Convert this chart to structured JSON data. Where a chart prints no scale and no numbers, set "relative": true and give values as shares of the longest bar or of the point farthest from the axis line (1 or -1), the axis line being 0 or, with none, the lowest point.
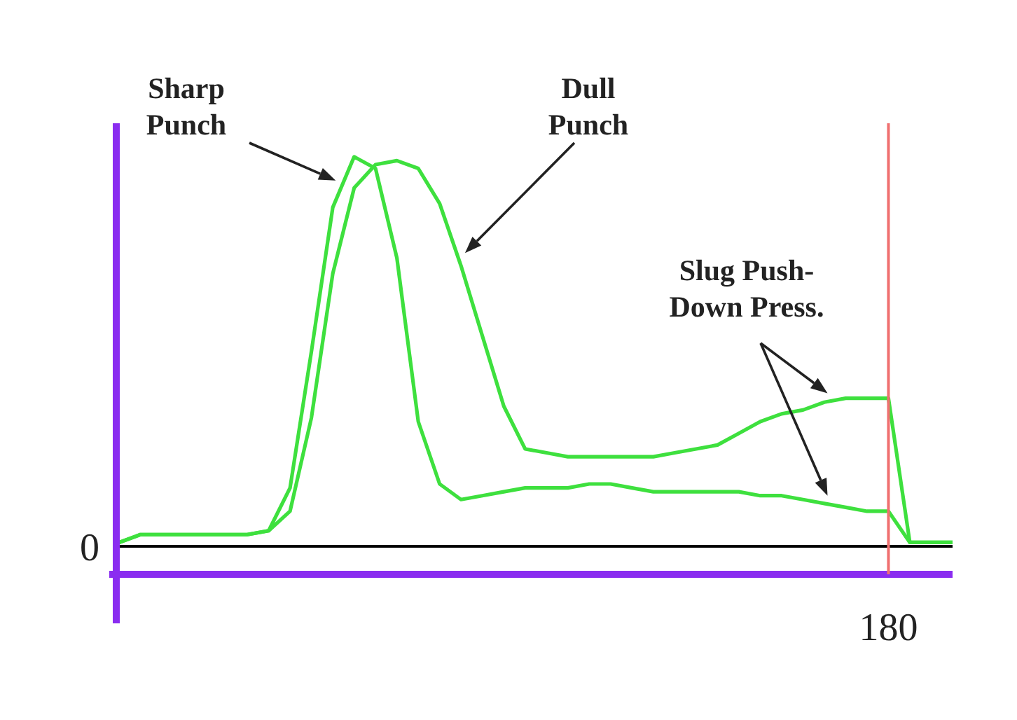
{
  "chart_data": {
    "type": "line",
    "relative": true,
    "line_style": "solid",
    "marker": "none",
    "categories": [
      null,
      null,
      null,
      null,
      null,
      null,
      null,
      null,
      null,
      null,
      null,
      null,
      null,
      null,
      null,
      null,
      null,
      null,
      null,
      null,
      null,
      null,
      null,
      null,
      null,
      null,
      null,
      null,
      null,
      null,
      null,
      null,
      null,
      null,
      null,
      null,
      null,
      null,
      null,
      null
    ],
    "series": [
      {
        "name": "Sharp Punch",
        "color": "#3ee03e",
        "values": [
          0.01,
          0.03,
          0.03,
          0.03,
          0.03,
          0.03,
          0.03,
          0.04,
          0.15,
          0.5,
          0.87,
          1.0,
          0.97,
          0.74,
          0.32,
          0.16,
          0.12,
          0.13,
          0.14,
          0.15,
          0.15,
          0.15,
          0.16,
          0.16,
          0.15,
          0.14,
          0.14,
          0.14,
          0.14,
          0.14,
          0.13,
          0.13,
          0.12,
          0.11,
          0.1,
          0.09,
          0.09,
          0.01,
          0.01,
          0.01
        ]
      },
      {
        "name": "Dull Punch",
        "color": "#3ee03e",
        "values": [
          0.01,
          0.03,
          0.03,
          0.03,
          0.03,
          0.03,
          0.03,
          0.04,
          0.09,
          0.33,
          0.7,
          0.92,
          0.98,
          0.99,
          0.97,
          0.88,
          0.72,
          0.54,
          0.36,
          0.25,
          0.24,
          0.23,
          0.23,
          0.23,
          0.23,
          0.23,
          0.24,
          0.25,
          0.26,
          0.29,
          0.32,
          0.34,
          0.35,
          0.37,
          0.38,
          0.38,
          0.38,
          0.01,
          0.01,
          0.01
        ]
      }
    ],
    "annotations": [
      "Slug Push-Down Press.",
      "0",
      "180"
    ]
  }
}
